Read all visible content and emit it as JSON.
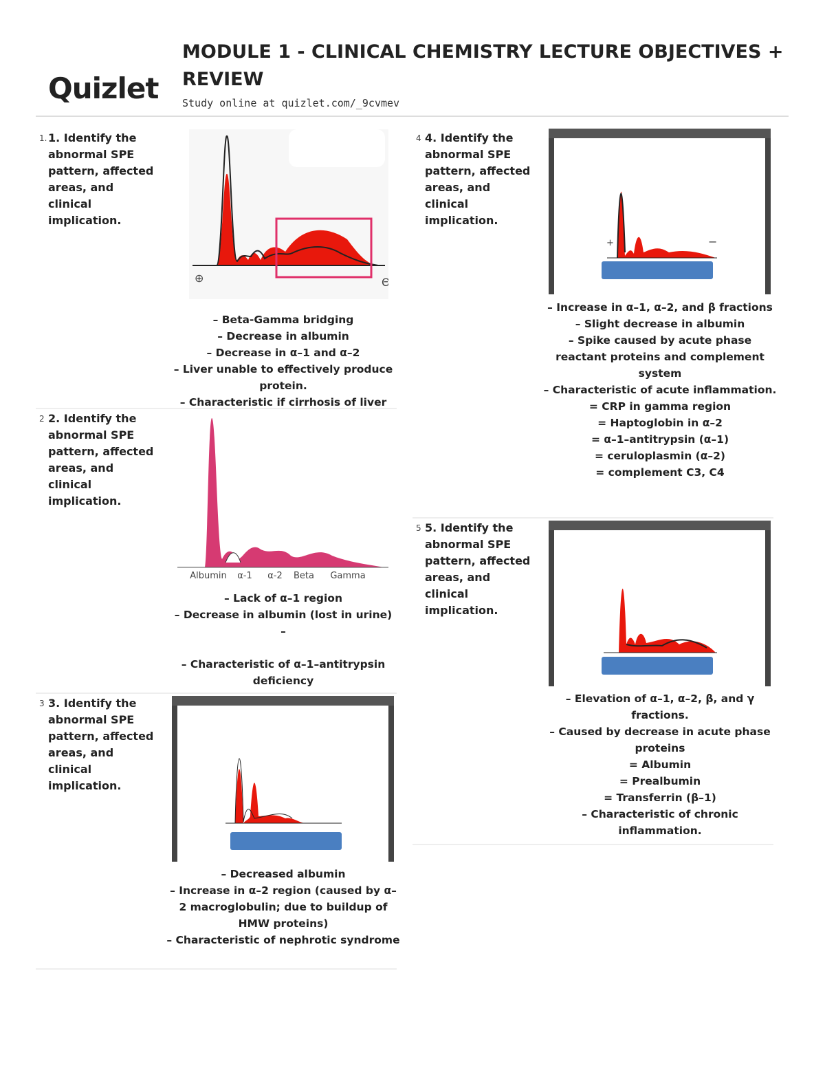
{
  "header": {
    "logo": "Quizlet",
    "title": "MODULE 1 - CLINICAL CHEMISTRY LECTURE OBJECTIVES + REVIEW",
    "subtitle": "Study online at quizlet.com/_9cvmev"
  },
  "cards": [
    {
      "number": "1.",
      "term": "1. Identify the abnormal SPE pattern, affected areas, and clinical implication.",
      "image_labels": [
        "⊕",
        "Θ"
      ],
      "definition": [
        "– Beta-Gamma bridging",
        "– Decrease in albumin",
        "– Decrease in α–1 and α–2",
        "– Liver unable to effectively produce protein.",
        "– Characteristic if cirrhosis of liver"
      ]
    },
    {
      "number": "2",
      "term": "2. Identify the abnormal SPE pattern, affected areas, and clinical implication.",
      "image_labels": [
        "Albumin",
        "α-1",
        "α-2",
        "Beta",
        "Gamma"
      ],
      "definition": [
        "– Lack of α–1 region",
        "– Decrease in albumin (lost in urine)",
        "–",
        "– Characteristic of α–1–antitrypsin deficiency"
      ]
    },
    {
      "number": "3",
      "term": "3. Identify the abnormal SPE pattern, affected areas, and clinical implication.",
      "image_labels": [],
      "definition": [
        "– Decreased albumin",
        "– Increase in α–2 region (caused by α–2 macroglobulin; due to buildup of HMW proteins)",
        "– Characteristic of nephrotic syndrome"
      ]
    },
    {
      "number": "4",
      "term": "4. Identify the abnormal SPE pattern, affected areas, and clinical implication.",
      "image_labels": [
        "+",
        "−"
      ],
      "definition": [
        "– Increase in α–1, α–2, and β fractions",
        "– Slight decrease in albumin",
        "– Spike caused by acute phase reactant proteins and complement system",
        "– Characteristic of acute inflammation.",
        "= CRP in gamma region",
        "= Haptoglobin in α–2",
        "= α–1–antitrypsin (α–1)",
        "= ceruloplasmin (α–2)",
        "= complement C3, C4"
      ]
    },
    {
      "number": "5",
      "term": "5. Identify the abnormal SPE pattern, affected areas, and clinical implication.",
      "image_labels": [],
      "definition": [
        "– Elevation of α–1, α–2, β, and γ fractions.",
        "– Caused by decrease in acute phase proteins",
        "= Albumin",
        "= Prealbumin",
        "= Transferrin (β–1)",
        "– Characteristic of chronic inflammation."
      ]
    }
  ]
}
